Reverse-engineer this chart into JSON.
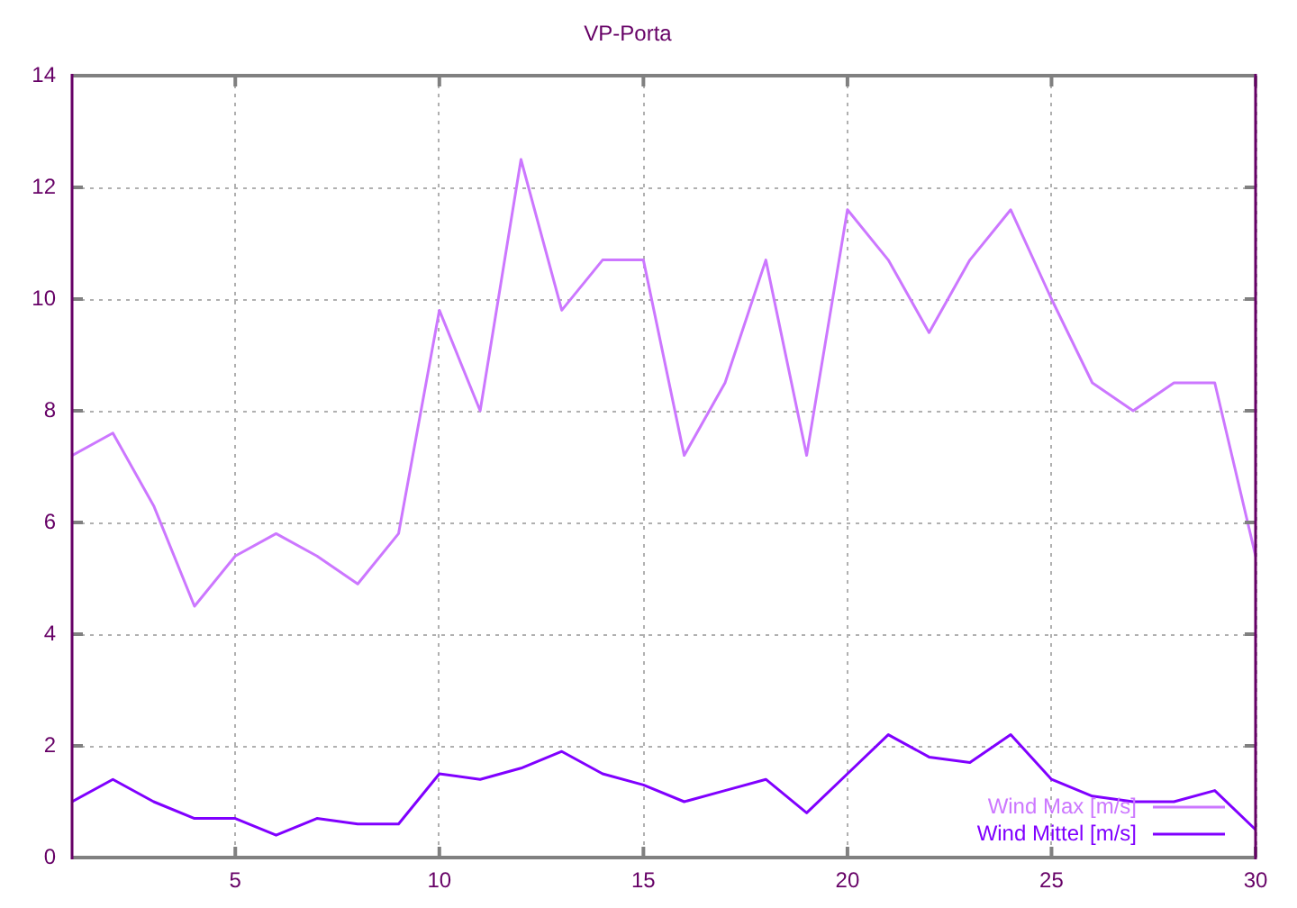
{
  "chart_data": {
    "type": "line",
    "title": "VP-Porta",
    "x": [
      1,
      2,
      3,
      4,
      5,
      6,
      7,
      8,
      9,
      10,
      11,
      12,
      13,
      14,
      15,
      16,
      17,
      18,
      19,
      20,
      21,
      22,
      23,
      24,
      25,
      26,
      27,
      28,
      29,
      30
    ],
    "series": [
      {
        "name": "Wind Max [m/s]",
        "color": "#cc77ff",
        "values": [
          7.2,
          7.6,
          6.3,
          4.5,
          5.4,
          5.8,
          5.4,
          4.9,
          5.8,
          9.8,
          8.0,
          12.5,
          9.8,
          10.7,
          10.7,
          7.2,
          8.5,
          10.7,
          7.2,
          11.6,
          10.7,
          9.4,
          10.7,
          11.6,
          10.0,
          8.5,
          8.0,
          8.5,
          8.5,
          5.4
        ]
      },
      {
        "name": "Wind Mittel [m/s]",
        "color": "#8000ff",
        "values": [
          1.0,
          1.4,
          1.0,
          0.7,
          0.7,
          0.4,
          0.7,
          0.6,
          0.6,
          1.5,
          1.4,
          1.6,
          1.9,
          1.5,
          1.3,
          1.0,
          1.2,
          1.4,
          0.8,
          1.5,
          2.2,
          1.8,
          1.7,
          2.2,
          1.4,
          1.1,
          1.0,
          1.0,
          1.2,
          0.5
        ]
      }
    ],
    "xlim": [
      1,
      30
    ],
    "xticks": [
      5,
      10,
      15,
      20,
      25,
      30
    ],
    "ylim": [
      0,
      14
    ],
    "yticks": [
      0,
      2,
      4,
      6,
      8,
      10,
      12,
      14
    ],
    "grid": true,
    "legend": "bottom right"
  }
}
